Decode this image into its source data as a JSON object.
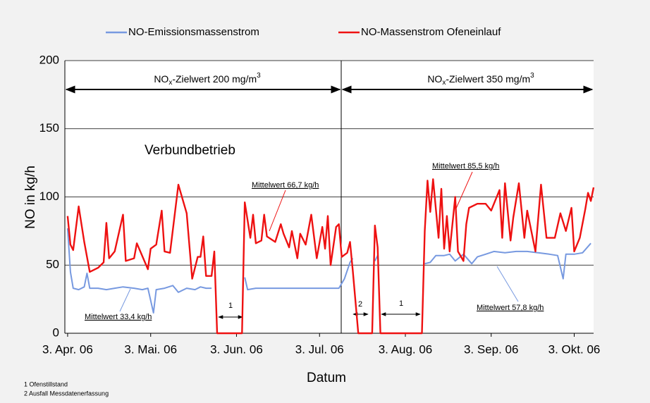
{
  "chart_data": {
    "type": "line",
    "x_label": "Datum",
    "y_label": "NO in kg/h",
    "xlim": [
      "2006-04-02",
      "2006-10-10"
    ],
    "xticks": [
      {
        "value": "2006-04-03",
        "label": "3. Apr. 06"
      },
      {
        "value": "2006-05-03",
        "label": "3. Mai. 06"
      },
      {
        "value": "2006-06-03",
        "label": "3. Jun. 06"
      },
      {
        "value": "2006-07-03",
        "label": "3. Jul. 06"
      },
      {
        "value": "2006-08-03",
        "label": "3. Aug. 06"
      },
      {
        "value": "2006-09-03",
        "label": "3. Sep. 06"
      },
      {
        "value": "2006-10-03",
        "label": "3. Okt. 06"
      }
    ],
    "ylim": [
      0,
      200
    ],
    "yticks": [
      0,
      50,
      100,
      150,
      200
    ],
    "grid": true,
    "legend": "top",
    "series": [
      {
        "name": "NO-Emissionsmassenstrom",
        "color": "#7799e0",
        "x": [
          "2006-04-03",
          "2006-04-04",
          "2006-04-05",
          "2006-04-07",
          "2006-04-09",
          "2006-04-10",
          "2006-04-11",
          "2006-04-14",
          "2006-04-17",
          "2006-04-20",
          "2006-04-23",
          "2006-04-27",
          "2006-04-30",
          "2006-05-02",
          "2006-05-04",
          "2006-05-05",
          "2006-05-08",
          "2006-05-11",
          "2006-05-13",
          "2006-05-16",
          "2006-05-19",
          "2006-05-21",
          "2006-05-23",
          "2006-05-25",
          "2006-05-26",
          "2006-06-06",
          "2006-06-07",
          "2006-06-10",
          "2006-06-15",
          "2006-06-20",
          "2006-06-25",
          "2006-06-30",
          "2006-07-05",
          "2006-07-10",
          "2006-07-12",
          "2006-07-14",
          "2006-07-15",
          "2006-07-17",
          "2006-07-23",
          "2006-07-24",
          "2006-07-25",
          "2006-08-10",
          "2006-08-12",
          "2006-08-14",
          "2006-08-17",
          "2006-08-19",
          "2006-08-21",
          "2006-08-24",
          "2006-08-27",
          "2006-08-29",
          "2006-09-01",
          "2006-09-04",
          "2006-09-08",
          "2006-09-12",
          "2006-09-16",
          "2006-09-20",
          "2006-09-24",
          "2006-09-27",
          "2006-09-29",
          "2006-09-30",
          "2006-10-03",
          "2006-10-06",
          "2006-10-09"
        ],
        "values": [
          77,
          45,
          33,
          32,
          34,
          44,
          33,
          33,
          32,
          33,
          34,
          33,
          32,
          33,
          15,
          32,
          33,
          35,
          30,
          33,
          32,
          34,
          33,
          33,
          null,
          41,
          32,
          33,
          33,
          33,
          33,
          33,
          33,
          33,
          40,
          52,
          55,
          null,
          53,
          57,
          null,
          51,
          52,
          57,
          57,
          58,
          53,
          58,
          51,
          56,
          58,
          60,
          59,
          60,
          60,
          59,
          58,
          57,
          40,
          58,
          58,
          59,
          66
        ]
      },
      {
        "name": "NO-Massenstrom Ofeneinlauf",
        "color": "#ee1111",
        "x": [
          "2006-04-03",
          "2006-04-04",
          "2006-04-05",
          "2006-04-07",
          "2006-04-09",
          "2006-04-11",
          "2006-04-14",
          "2006-04-16",
          "2006-04-17",
          "2006-04-18",
          "2006-04-20",
          "2006-04-23",
          "2006-04-24",
          "2006-04-27",
          "2006-04-28",
          "2006-05-02",
          "2006-05-03",
          "2006-05-05",
          "2006-05-07",
          "2006-05-08",
          "2006-05-10",
          "2006-05-13",
          "2006-05-16",
          "2006-05-18",
          "2006-05-20",
          "2006-05-21",
          "2006-05-22",
          "2006-05-23",
          "2006-05-25",
          "2006-05-26",
          "2006-05-27",
          "2006-06-05",
          "2006-06-06",
          "2006-06-08",
          "2006-06-09",
          "2006-06-10",
          "2006-06-12",
          "2006-06-13",
          "2006-06-14",
          "2006-06-17",
          "2006-06-19",
          "2006-06-20",
          "2006-06-22",
          "2006-06-23",
          "2006-06-25",
          "2006-06-26",
          "2006-06-28",
          "2006-06-30",
          "2006-07-02",
          "2006-07-04",
          "2006-07-05",
          "2006-07-06",
          "2006-07-07",
          "2006-07-09",
          "2006-07-10",
          "2006-07-11",
          "2006-07-13",
          "2006-07-14",
          "2006-07-15",
          "2006-07-17",
          "2006-07-22",
          "2006-07-23",
          "2006-07-24",
          "2006-07-25",
          "2006-08-09",
          "2006-08-10",
          "2006-08-11",
          "2006-08-12",
          "2006-08-13",
          "2006-08-15",
          "2006-08-16",
          "2006-08-17",
          "2006-08-18",
          "2006-08-19",
          "2006-08-21",
          "2006-08-22",
          "2006-08-24",
          "2006-08-25",
          "2006-08-26",
          "2006-08-29",
          "2006-09-01",
          "2006-09-03",
          "2006-09-06",
          "2006-09-07",
          "2006-09-08",
          "2006-09-10",
          "2006-09-11",
          "2006-09-13",
          "2006-09-15",
          "2006-09-16",
          "2006-09-19",
          "2006-09-21",
          "2006-09-23",
          "2006-09-26",
          "2006-09-28",
          "2006-09-30",
          "2006-10-02",
          "2006-10-03",
          "2006-10-05",
          "2006-10-07",
          "2006-10-08",
          "2006-10-09",
          "2006-10-10"
        ],
        "values": [
          86,
          65,
          61,
          93,
          67,
          45,
          48,
          52,
          81,
          55,
          60,
          87,
          53,
          55,
          66,
          47,
          62,
          65,
          90,
          60,
          59,
          109,
          88,
          40,
          56,
          56,
          71,
          42,
          42,
          60,
          0,
          0,
          96,
          70,
          87,
          66,
          68,
          87,
          71,
          67,
          80,
          73,
          63,
          75,
          55,
          73,
          65,
          87,
          55,
          78,
          62,
          86,
          50,
          78,
          80,
          56,
          59,
          67,
          46,
          0,
          0,
          79,
          63,
          0,
          0,
          75,
          112,
          89,
          113,
          70,
          106,
          62,
          86,
          60,
          100,
          60,
          53,
          80,
          92,
          95,
          95,
          90,
          105,
          70,
          110,
          68,
          85,
          110,
          70,
          90,
          60,
          109,
          70,
          70,
          88,
          75,
          92,
          60,
          70,
          91,
          103,
          97,
          107
        ]
      }
    ],
    "annotations": {
      "target_left": [
        "NO",
        "x",
        "-Zielwert 200 mg/m",
        "3"
      ],
      "target_right": [
        "NO",
        "x",
        "-Zielwert 350 mg/m",
        "3"
      ],
      "mode": "Verbundbetrieb",
      "mean_red_1": "Mittelwert 66,7 kg/h",
      "mean_red_2": "Mittelwert 85,5 kg/h",
      "mean_blue_1": "Mittelwert 33,4 kg/h",
      "mean_blue_2": "Mittelwert 57,8 kg/h",
      "gap_1a": "1",
      "gap_2": "2",
      "gap_1b": "1"
    },
    "footnotes": [
      "1 Ofenstillstand",
      "2 Ausfall Messdatenerfassung"
    ]
  }
}
